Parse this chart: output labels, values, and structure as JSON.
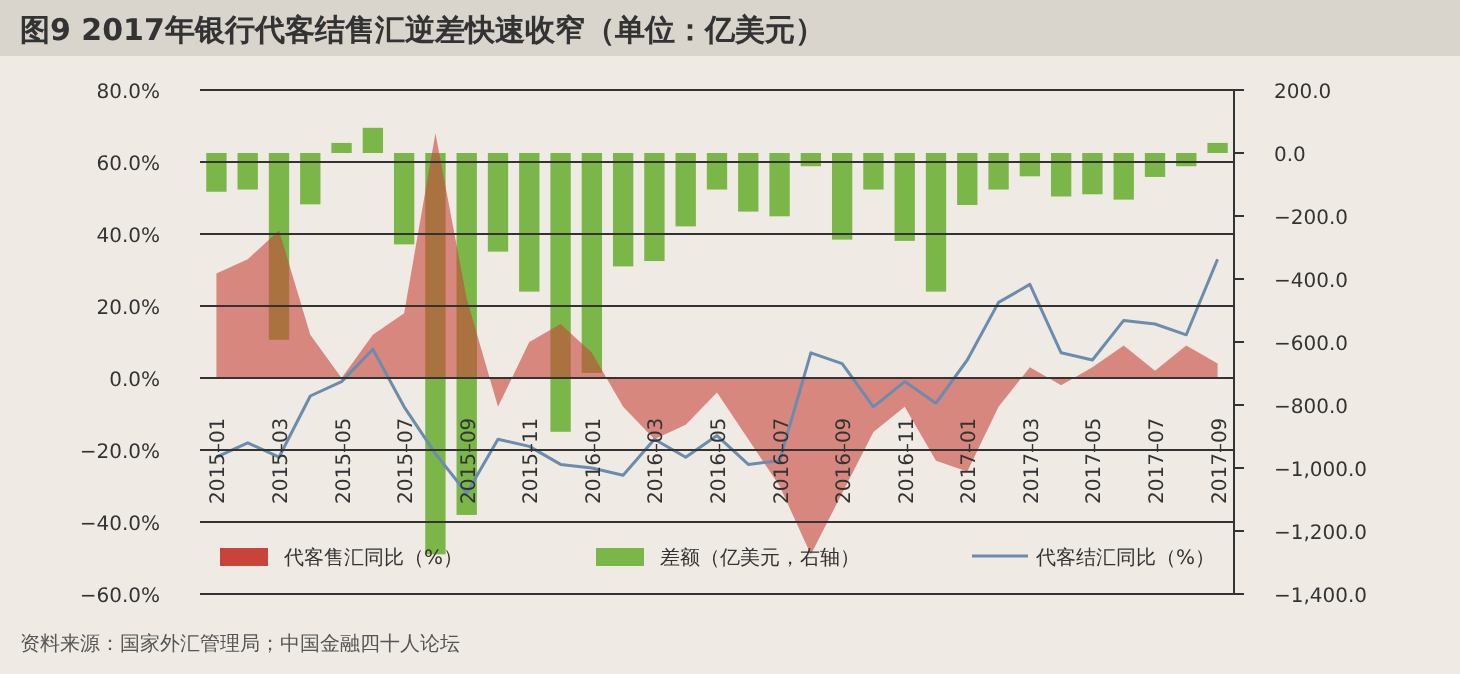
{
  "chart_data": {
    "type": "bar",
    "title": "图9  2017年银行代客结售汇逆差快速收窄（单位：亿美元）",
    "categories": [
      "2015–01",
      null,
      "2015–03",
      null,
      "2015–05",
      null,
      "2015–07",
      null,
      "2015–09",
      null,
      "2015–11",
      null,
      "2016–01",
      null,
      "2016–03",
      null,
      "2016–05",
      null,
      "2016–07",
      null,
      "2016–09",
      null,
      "2016–11",
      null,
      "2017–01",
      null,
      "2017–03",
      null,
      "2017–05",
      null,
      "2017–07",
      null,
      "2017–09"
    ],
    "series": [
      {
        "name": "代客售汇同比（%）",
        "type": "area",
        "color": "#c8443a",
        "values": [
          29,
          33,
          41,
          12,
          0,
          12,
          18,
          68,
          22,
          -8,
          10,
          15,
          7,
          -8,
          -17,
          -13,
          -4,
          -17,
          -30,
          -49,
          -32,
          -15,
          -8,
          -23,
          -26,
          -8,
          3,
          -2,
          3,
          9,
          2,
          9,
          4
        ]
      },
      {
        "name": "差额（亿美元，右轴）",
        "axis": "y2",
        "color": "#7ab648",
        "values": [
          -123,
          -116,
          -593,
          -163,
          32,
          80,
          -290,
          -1274,
          -1149,
          -313,
          -440,
          -885,
          -698,
          -360,
          -343,
          -233,
          -116,
          -186,
          -201,
          -42,
          -275,
          -116,
          -279,
          -440,
          -165,
          -116,
          -74,
          -138,
          -131,
          -148,
          -76,
          -42,
          32
        ]
      },
      {
        "name": "代客结汇同比（%）",
        "type": "line",
        "color": "#6a8cae",
        "values": [
          -22,
          -18,
          -22,
          -5,
          -1,
          8,
          -8,
          -21,
          -32,
          -17,
          -19,
          -24,
          -25,
          -27,
          -17,
          -22,
          -16,
          -24,
          -23,
          7,
          4,
          -8,
          -1,
          -7,
          5,
          21,
          26,
          7,
          5,
          16,
          15,
          12,
          33
        ]
      }
    ],
    "ylim": [
      -60,
      80
    ],
    "yticks": [
      {
        "value": -60,
        "label": "−60.0%"
      },
      {
        "value": -40,
        "label": "−40.0%"
      },
      {
        "value": -20,
        "label": "−20.0%"
      },
      {
        "value": 0,
        "label": "0.0%"
      },
      {
        "value": 20,
        "label": "20.0%"
      },
      {
        "value": 40,
        "label": "40.0%"
      },
      {
        "value": 60,
        "label": "60.0%"
      },
      {
        "value": 80,
        "label": "80.0%"
      }
    ],
    "y2lim": [
      -1400,
      200
    ],
    "y2ticks": [
      {
        "value": -1400,
        "label": "−1,400.0"
      },
      {
        "value": -1200,
        "label": "−1,200.0"
      },
      {
        "value": -1000,
        "label": "−1,000.0"
      },
      {
        "value": -800,
        "label": "−800.0"
      },
      {
        "value": -600,
        "label": "−600.0"
      },
      {
        "value": -400,
        "label": "−400.0"
      },
      {
        "value": -200,
        "label": "−200.0"
      },
      {
        "value": 0,
        "label": "0.0"
      },
      {
        "value": 200,
        "label": "200.0"
      }
    ],
    "grid": "y",
    "legend": "bottom",
    "annotations": [
      "资料来源：国家外汇管理局；中国金融四十人论坛"
    ]
  }
}
